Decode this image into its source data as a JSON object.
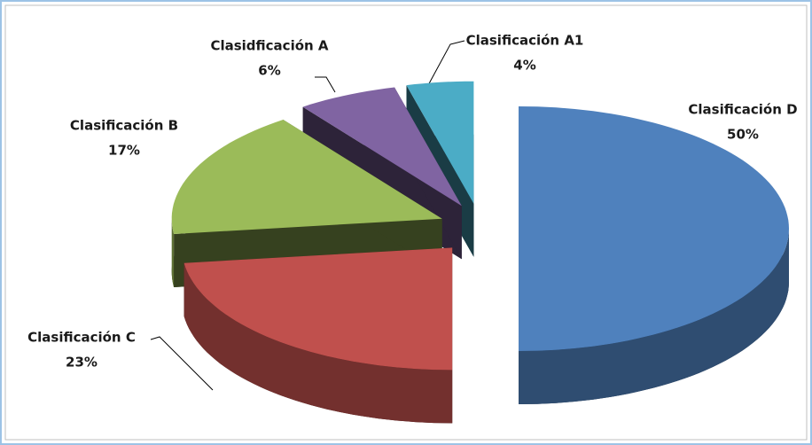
{
  "chart_data": {
    "type": "pie",
    "categories": [
      "Clasificación D",
      "Clasificación C",
      "Clasificación B",
      "Clasidficación A",
      "Clasificación A1"
    ],
    "values": [
      50,
      23,
      17,
      6,
      4
    ],
    "value_labels": [
      "50%",
      "23%",
      "17%",
      "6%",
      "4%"
    ],
    "colors": [
      "#4f81bd",
      "#c0504d",
      "#9bbb59",
      "#8064a2",
      "#4bacc6"
    ]
  }
}
